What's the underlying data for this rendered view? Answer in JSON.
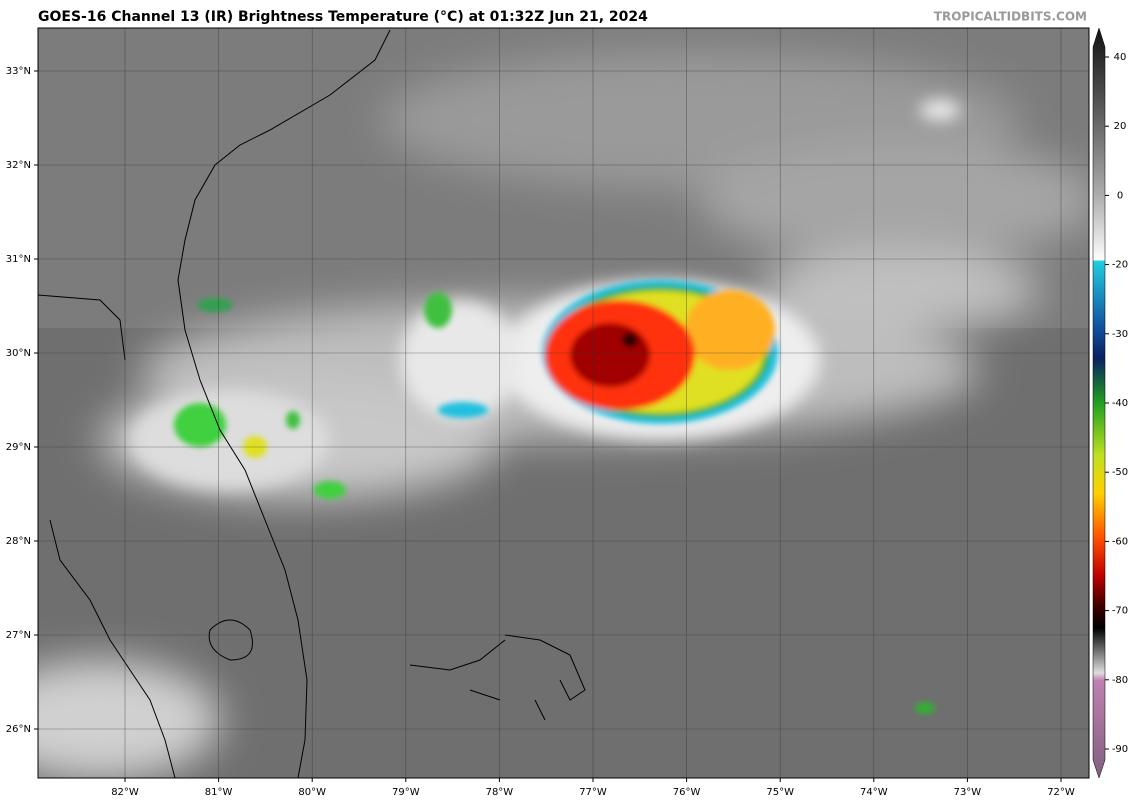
{
  "header": {
    "title": "GOES-16 Channel 13 (IR) Brightness Temperature (°C) at 01:32Z Jun 21, 2024",
    "credit": "TROPICALTIDBITS.COM"
  },
  "map": {
    "longitude_labels": [
      "82°W",
      "81°W",
      "80°W",
      "79°W",
      "78°W",
      "77°W",
      "76°W",
      "75°W",
      "74°W",
      "73°W",
      "72°W"
    ],
    "latitude_labels": [
      "33°N",
      "32°N",
      "31°N",
      "30°N",
      "29°N",
      "28°N",
      "27°N",
      "26°N"
    ]
  },
  "colorbar": {
    "ticks": [
      40,
      20,
      0,
      -20,
      -30,
      -40,
      -50,
      -60,
      -70,
      -80,
      -90
    ]
  }
}
